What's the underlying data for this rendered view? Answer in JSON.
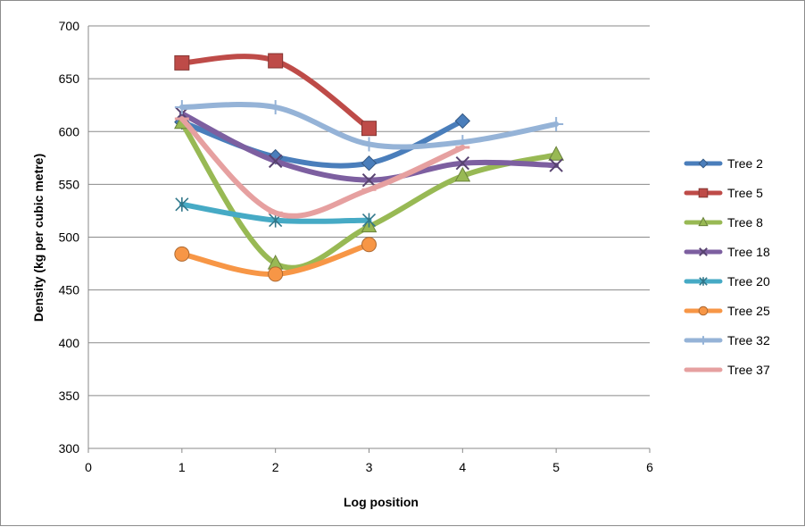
{
  "chart_data": {
    "type": "line",
    "title": "",
    "xlabel": "Log position",
    "ylabel": "Density (kg per cubic metre)",
    "xlim": [
      0,
      6
    ],
    "ylim": [
      300,
      700
    ],
    "x_ticks": [
      "0",
      "1",
      "2",
      "3",
      "4",
      "5",
      "6"
    ],
    "y_ticks": [
      "300",
      "350",
      "400",
      "450",
      "500",
      "550",
      "600",
      "650",
      "700"
    ],
    "grid": "horizontal",
    "legend_position": "right",
    "smooth": true,
    "series": [
      {
        "name": "Tree 2",
        "color": "#4a7ebb",
        "marker": "diamond",
        "x": [
          1,
          2,
          3,
          4
        ],
        "y": [
          609,
          576,
          570,
          610
        ]
      },
      {
        "name": "Tree 5",
        "color": "#be4b48",
        "marker": "square",
        "x": [
          1,
          2,
          3
        ],
        "y": [
          665,
          667,
          603
        ]
      },
      {
        "name": "Tree 8",
        "color": "#98b954",
        "marker": "triangle",
        "x": [
          1,
          2,
          3,
          4,
          5
        ],
        "y": [
          608,
          475,
          510,
          558,
          578
        ]
      },
      {
        "name": "Tree 18",
        "color": "#7d5fa0",
        "marker": "x",
        "x": [
          1,
          2,
          3,
          4,
          5
        ],
        "y": [
          617,
          572,
          554,
          570,
          568
        ]
      },
      {
        "name": "Tree 20",
        "color": "#46aac5",
        "marker": "star",
        "x": [
          1,
          2,
          3
        ],
        "y": [
          531,
          516,
          516
        ]
      },
      {
        "name": "Tree 25",
        "color": "#f79646",
        "marker": "circle",
        "x": [
          1,
          2,
          3
        ],
        "y": [
          484,
          465,
          493
        ]
      },
      {
        "name": "Tree 32",
        "color": "#95b3d7",
        "marker": "plus",
        "x": [
          1,
          2,
          3,
          4,
          5
        ],
        "y": [
          623,
          623,
          588,
          590,
          607
        ]
      },
      {
        "name": "Tree 37",
        "color": "#e6a0a0",
        "marker": "dash",
        "x": [
          1,
          2,
          3,
          4
        ],
        "y": [
          612,
          523,
          545,
          585
        ]
      }
    ]
  }
}
